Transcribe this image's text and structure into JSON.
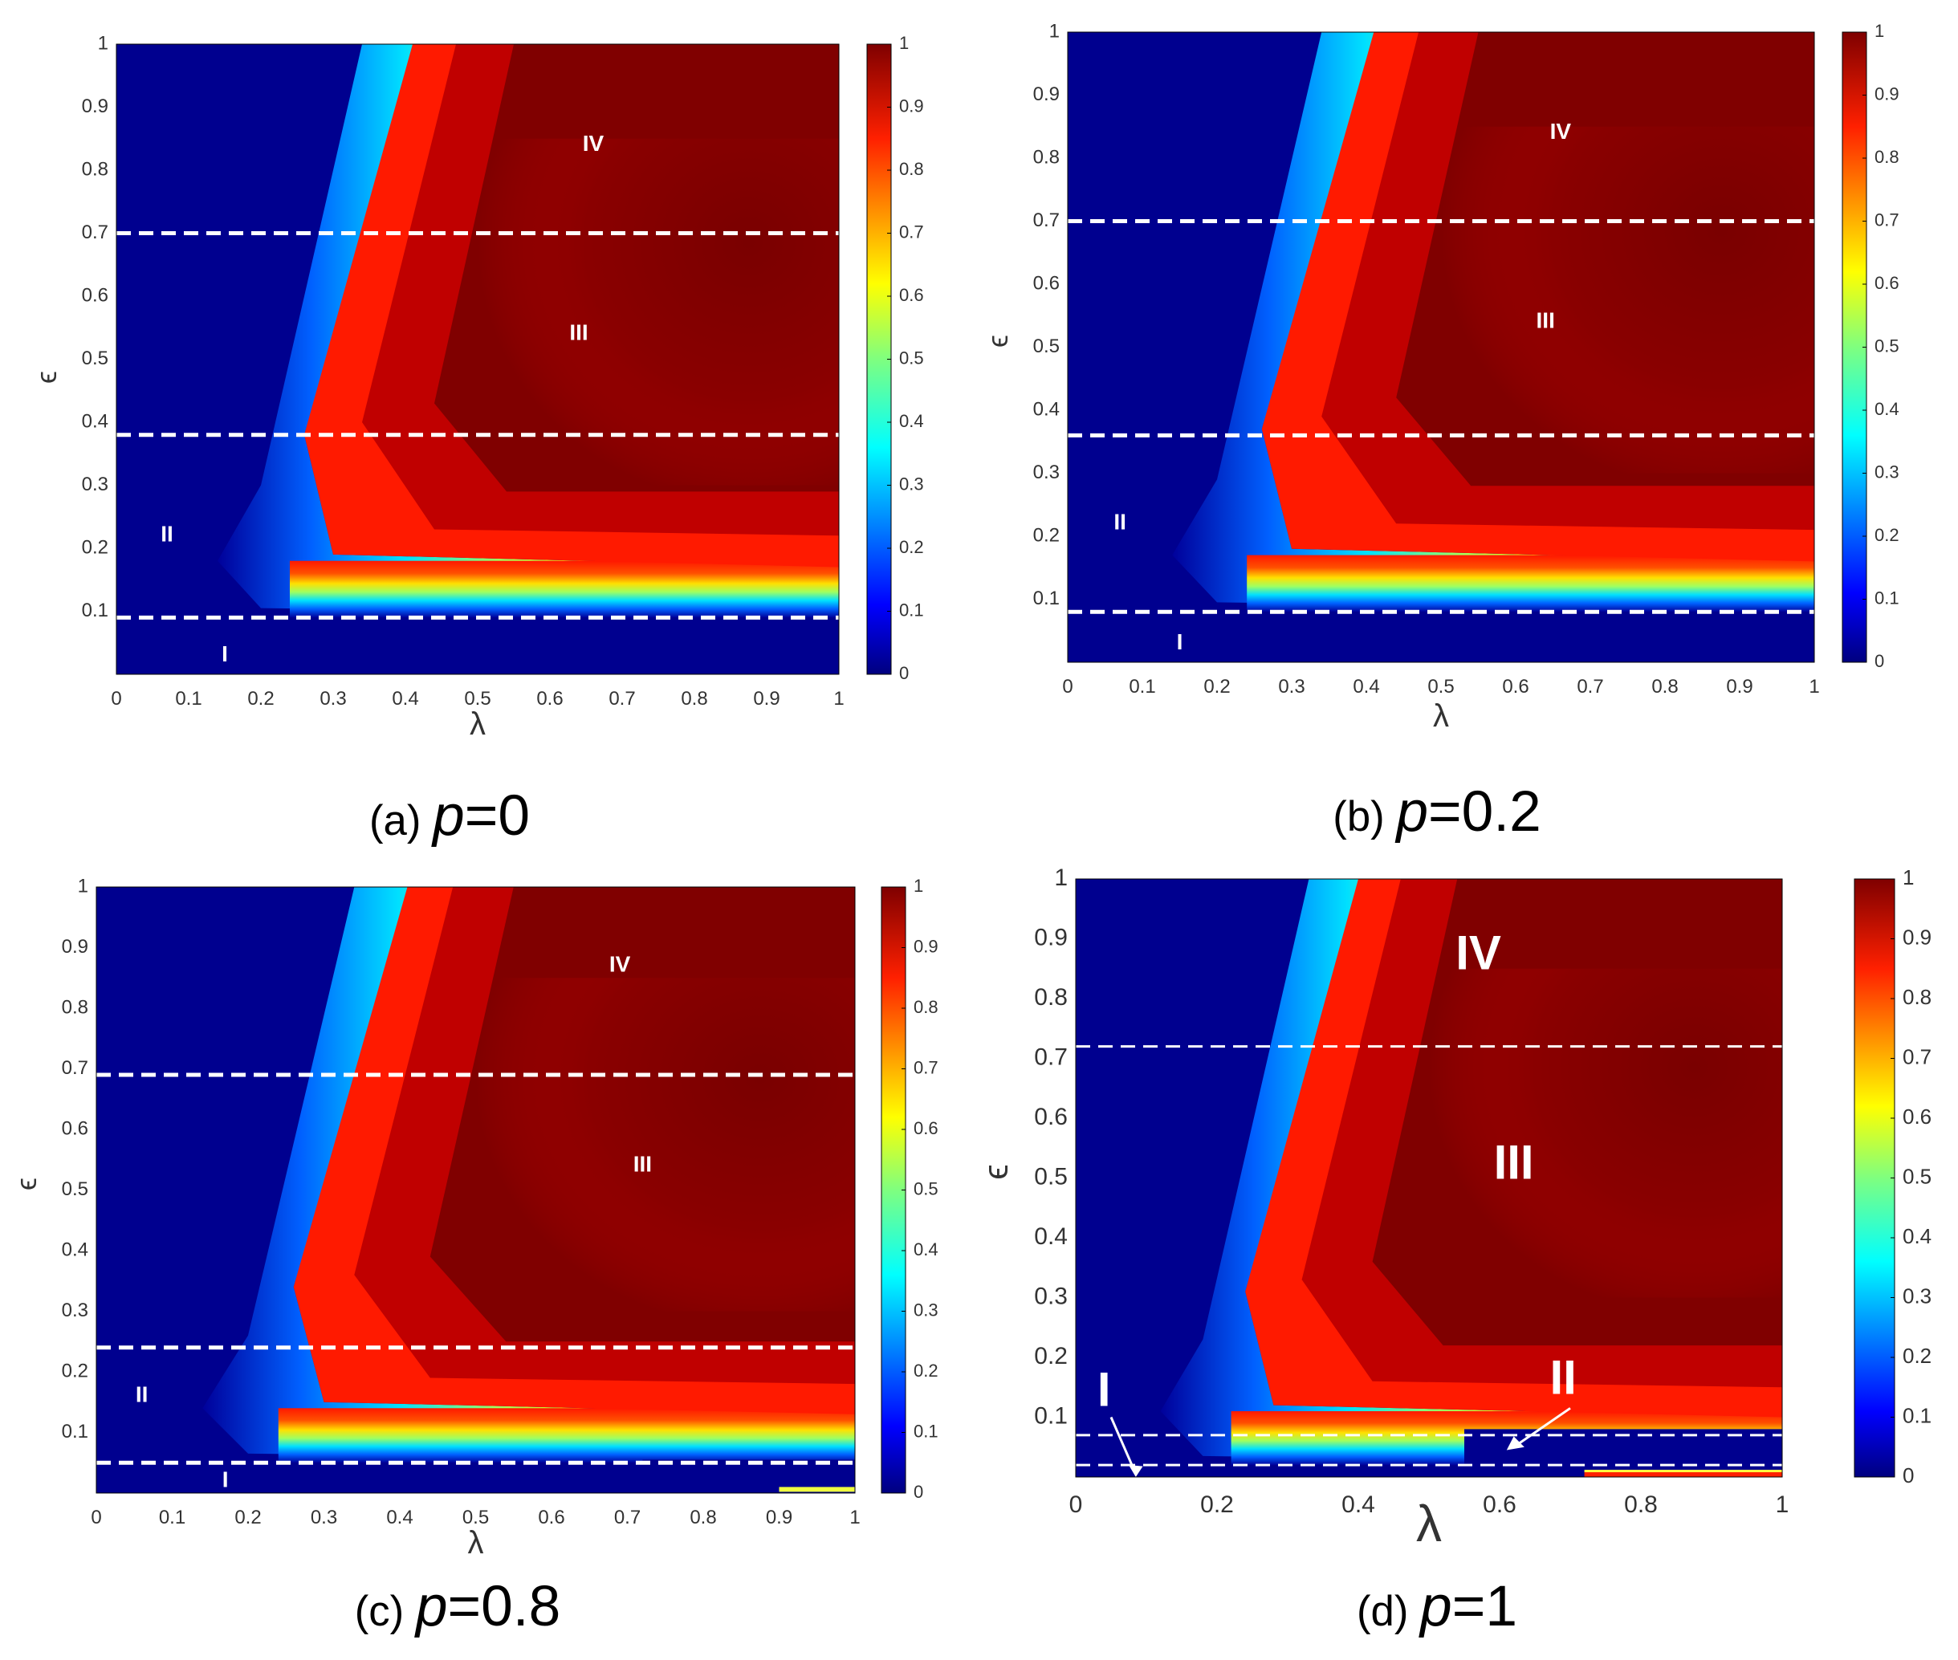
{
  "figure": {
    "colorbar_ticks": [
      "0",
      "0.1",
      "0.2",
      "0.3",
      "0.4",
      "0.5",
      "0.6",
      "0.7",
      "0.8",
      "0.9",
      "1"
    ],
    "colorbar_colors": [
      "#00007f",
      "#0000ff",
      "#007fff",
      "#00ffff",
      "#7fff7f",
      "#ffff00",
      "#ff7f00",
      "#ff0000",
      "#7f0000"
    ],
    "region_colors": {
      "low": "#00008f",
      "high": "#800000",
      "dash": "#ffffff"
    }
  },
  "chart_data": [
    {
      "type": "heatmap",
      "panel": "a",
      "caption_prefix": "(a) ",
      "caption_var": "p",
      "caption_value": "=0",
      "xlabel": "λ",
      "ylabel": "ϵ",
      "xlim": [
        0,
        1
      ],
      "ylim": [
        0,
        1
      ],
      "xticks": [
        "0",
        "0.1",
        "0.2",
        "0.3",
        "0.4",
        "0.5",
        "0.6",
        "0.7",
        "0.8",
        "0.9",
        "1"
      ],
      "yticks": [
        "0.1",
        "0.2",
        "0.3",
        "0.4",
        "0.5",
        "0.6",
        "0.7",
        "0.8",
        "0.9",
        "1"
      ],
      "colorbar_range": [
        0,
        1
      ],
      "boundaries_epsilon": [
        0.09,
        0.38,
        0.7
      ],
      "regions": [
        {
          "label": "I",
          "x": 0.15,
          "y": 0.03
        },
        {
          "label": "II",
          "x": 0.07,
          "y": 0.22
        },
        {
          "label": "III",
          "x": 0.64,
          "y": 0.54
        },
        {
          "label": "IV",
          "x": 0.66,
          "y": 0.84
        }
      ]
    },
    {
      "type": "heatmap",
      "panel": "b",
      "caption_prefix": "(b) ",
      "caption_var": "p",
      "caption_value": "=0.2",
      "xlabel": "λ",
      "ylabel": "ϵ",
      "xlim": [
        0,
        1
      ],
      "ylim": [
        0,
        1
      ],
      "xticks": [
        "0",
        "0.1",
        "0.2",
        "0.3",
        "0.4",
        "0.5",
        "0.6",
        "0.7",
        "0.8",
        "0.9",
        "1"
      ],
      "yticks": [
        "0.1",
        "0.2",
        "0.3",
        "0.4",
        "0.5",
        "0.6",
        "0.7",
        "0.8",
        "0.9",
        "1"
      ],
      "colorbar_range": [
        0,
        1
      ],
      "boundaries_epsilon": [
        0.08,
        0.36,
        0.7
      ],
      "regions": [
        {
          "label": "I",
          "x": 0.15,
          "y": 0.03
        },
        {
          "label": "II",
          "x": 0.07,
          "y": 0.22
        },
        {
          "label": "III",
          "x": 0.64,
          "y": 0.54
        },
        {
          "label": "IV",
          "x": 0.66,
          "y": 0.84
        }
      ]
    },
    {
      "type": "heatmap",
      "panel": "c",
      "caption_prefix": "(c) ",
      "caption_var": "p",
      "caption_value": "=0.8",
      "xlabel": "λ",
      "ylabel": "ϵ",
      "xlim": [
        0,
        1
      ],
      "ylim": [
        0,
        1
      ],
      "xticks": [
        "0",
        "0.1",
        "0.2",
        "0.3",
        "0.4",
        "0.5",
        "0.6",
        "0.7",
        "0.8",
        "0.9",
        "1"
      ],
      "yticks": [
        "0.1",
        "0.2",
        "0.3",
        "0.4",
        "0.5",
        "0.6",
        "0.7",
        "0.8",
        "0.9",
        "1"
      ],
      "colorbar_range": [
        0,
        1
      ],
      "boundaries_epsilon": [
        0.05,
        0.24,
        0.69
      ],
      "regions": [
        {
          "label": "I",
          "x": 0.17,
          "y": 0.02
        },
        {
          "label": "II",
          "x": 0.06,
          "y": 0.16
        },
        {
          "label": "III",
          "x": 0.72,
          "y": 0.54
        },
        {
          "label": "IV",
          "x": 0.69,
          "y": 0.87
        }
      ]
    },
    {
      "type": "heatmap",
      "panel": "d",
      "caption_prefix": "(d) ",
      "caption_var": "p",
      "caption_value": "=1",
      "xlabel": "λ",
      "ylabel": "ϵ",
      "xlim": [
        0,
        1
      ],
      "ylim": [
        0,
        1
      ],
      "xticks": [
        "0",
        "0.2",
        "0.4",
        "0.6",
        "0.8",
        "1"
      ],
      "yticks": [
        "0.1",
        "0.2",
        "0.3",
        "0.4",
        "0.5",
        "0.6",
        "0.7",
        "0.8",
        "0.9",
        "1"
      ],
      "colorbar_range": [
        0,
        1
      ],
      "boundaries_epsilon": [
        0.02,
        0.07,
        0.72
      ],
      "regions": [
        {
          "label": "I",
          "x": 0.04,
          "y": 0.14
        },
        {
          "label": "II",
          "x": 0.69,
          "y": 0.16
        },
        {
          "label": "III",
          "x": 0.62,
          "y": 0.52
        },
        {
          "label": "IV",
          "x": 0.57,
          "y": 0.87
        }
      ]
    }
  ]
}
